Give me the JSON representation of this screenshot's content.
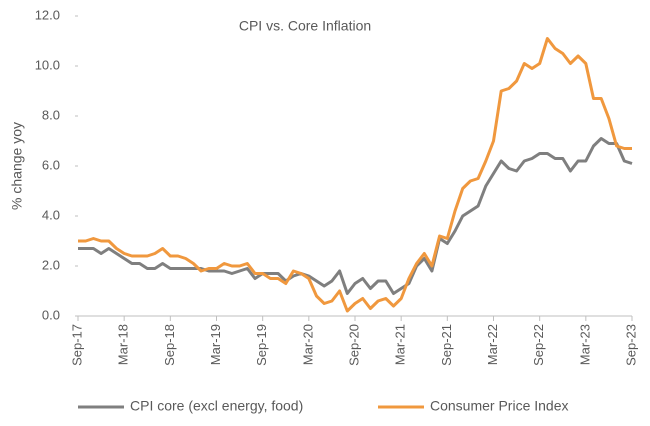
{
  "chart_data": {
    "type": "line",
    "title": "CPI vs. Core Inflation",
    "y_label": "% change yoy",
    "categories": [
      "Sep-17",
      null,
      null,
      null,
      null,
      null,
      "Mar-18",
      null,
      null,
      null,
      null,
      null,
      "Sep-18",
      null,
      null,
      null,
      null,
      null,
      "Mar-19",
      null,
      null,
      null,
      null,
      null,
      "Sep-19",
      null,
      null,
      null,
      null,
      null,
      "Mar-20",
      null,
      null,
      null,
      null,
      null,
      "Sep-20",
      null,
      null,
      null,
      null,
      null,
      "Mar-21",
      null,
      null,
      null,
      null,
      null,
      "Sep-21",
      null,
      null,
      null,
      null,
      null,
      "Mar-22",
      null,
      null,
      null,
      null,
      null,
      "Sep-22",
      null,
      null,
      null,
      null,
      null,
      "Mar-23",
      null,
      null,
      null,
      null,
      null,
      "Sep-23"
    ],
    "series": [
      {
        "name": "CPI core (excl energy, food)",
        "color": "#7f7f7f",
        "values": [
          2.7,
          2.7,
          2.7,
          2.5,
          2.7,
          2.5,
          2.3,
          2.1,
          2.1,
          1.9,
          1.9,
          2.1,
          1.9,
          1.9,
          1.9,
          1.9,
          1.9,
          1.8,
          1.8,
          1.8,
          1.7,
          1.8,
          1.9,
          1.5,
          1.7,
          1.7,
          1.7,
          1.4,
          1.6,
          1.7,
          1.6,
          1.4,
          1.2,
          1.4,
          1.8,
          0.9,
          1.3,
          1.5,
          1.1,
          1.4,
          1.4,
          0.9,
          1.1,
          1.3,
          2.0,
          2.3,
          1.8,
          3.1,
          2.9,
          3.4,
          4.0,
          4.2,
          4.4,
          5.2,
          5.7,
          6.2,
          5.9,
          5.8,
          6.2,
          6.3,
          6.5,
          6.5,
          6.3,
          6.3,
          5.8,
          6.2,
          6.2,
          6.8,
          7.1,
          6.9,
          6.9,
          6.2,
          6.1
        ]
      },
      {
        "name": "Consumer Price Index",
        "color": "#f0983e",
        "values": [
          3.0,
          3.0,
          3.1,
          3.0,
          3.0,
          2.7,
          2.5,
          2.4,
          2.4,
          2.4,
          2.5,
          2.7,
          2.4,
          2.4,
          2.3,
          2.1,
          1.8,
          1.9,
          1.9,
          2.1,
          2.0,
          2.0,
          2.1,
          1.7,
          1.7,
          1.5,
          1.5,
          1.3,
          1.8,
          1.7,
          1.5,
          0.8,
          0.5,
          0.6,
          1.0,
          0.2,
          0.5,
          0.7,
          0.3,
          0.6,
          0.7,
          0.4,
          0.7,
          1.5,
          2.1,
          2.5,
          2.0,
          3.2,
          3.1,
          4.2,
          5.1,
          5.4,
          5.5,
          6.2,
          7.0,
          9.0,
          9.1,
          9.4,
          10.1,
          9.9,
          10.1,
          11.1,
          10.7,
          10.5,
          10.1,
          10.4,
          10.1,
          8.7,
          8.7,
          7.9,
          6.8,
          6.7,
          6.7
        ]
      }
    ],
    "ylim": [
      0,
      12
    ],
    "yticks": [
      {
        "value": 0,
        "label": "0.0"
      },
      {
        "value": 2,
        "label": "2.0"
      },
      {
        "value": 4,
        "label": "4.0"
      },
      {
        "value": 6,
        "label": "6.0"
      },
      {
        "value": 8,
        "label": "8.0"
      },
      {
        "value": 10,
        "label": "10.0"
      },
      {
        "value": 12,
        "label": "12.0"
      }
    ],
    "legend": "bottom"
  }
}
